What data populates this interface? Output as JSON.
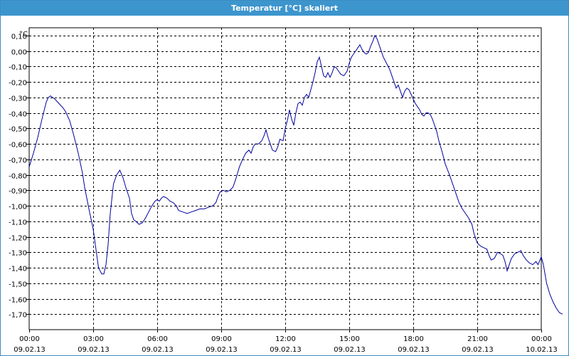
{
  "window": {
    "title": "Temperatur [°C] skaliert"
  },
  "colors": {
    "titlebar": "#3d95cd",
    "line": "#0000a0",
    "grid": "#000000"
  },
  "chart_data": {
    "type": "line",
    "title": "Temperatur [°C] skaliert",
    "ylabel": "°C",
    "xlabel": "",
    "ylim": [
      -1.8,
      0.15
    ],
    "grid": true,
    "y_ticks": [
      "0,10",
      "0,00",
      "-0,10",
      "-0,20",
      "-0,30",
      "-0,40",
      "-0,50",
      "-0,60",
      "-0,70",
      "-0,80",
      "-0,90",
      "-1,00",
      "-1,10",
      "-1,20",
      "-1,30",
      "-1,40",
      "-1,50",
      "-1,60",
      "-1,70"
    ],
    "y_tick_values": [
      0.1,
      0.0,
      -0.1,
      -0.2,
      -0.3,
      -0.4,
      -0.5,
      -0.6,
      -0.7,
      -0.8,
      -0.9,
      -1.0,
      -1.1,
      -1.2,
      -1.3,
      -1.4,
      -1.5,
      -1.6,
      -1.7
    ],
    "x_ticks": [
      {
        "time": "00:00",
        "date": "09.02.13",
        "hours": 0
      },
      {
        "time": "03:00",
        "date": "09.02.13",
        "hours": 3
      },
      {
        "time": "06:00",
        "date": "09.02.13",
        "hours": 6
      },
      {
        "time": "09:00",
        "date": "09.02.13",
        "hours": 9
      },
      {
        "time": "12:00",
        "date": "09.02.13",
        "hours": 12
      },
      {
        "time": "15:00",
        "date": "09.02.13",
        "hours": 15
      },
      {
        "time": "18:00",
        "date": "09.02.13",
        "hours": 18
      },
      {
        "time": "21:00",
        "date": "09.02.13",
        "hours": 21
      },
      {
        "time": "00:00",
        "date": "10.02.13",
        "hours": 24
      }
    ],
    "series": [
      {
        "points": [
          [
            0,
            -0.75
          ],
          [
            0.2,
            -0.66
          ],
          [
            0.4,
            -0.56
          ],
          [
            0.6,
            -0.44
          ],
          [
            0.8,
            -0.33
          ],
          [
            0.9,
            -0.3
          ],
          [
            1.0,
            -0.29
          ],
          [
            1.2,
            -0.31
          ],
          [
            1.4,
            -0.34
          ],
          [
            1.6,
            -0.37
          ],
          [
            1.7,
            -0.39
          ],
          [
            1.9,
            -0.45
          ],
          [
            2.1,
            -0.55
          ],
          [
            2.3,
            -0.66
          ],
          [
            2.5,
            -0.79
          ],
          [
            2.6,
            -0.88
          ],
          [
            2.8,
            -1.02
          ],
          [
            3.0,
            -1.15
          ],
          [
            3.15,
            -1.3
          ],
          [
            3.25,
            -1.4
          ],
          [
            3.4,
            -1.44
          ],
          [
            3.5,
            -1.44
          ],
          [
            3.6,
            -1.38
          ],
          [
            3.7,
            -1.25
          ],
          [
            3.8,
            -1.05
          ],
          [
            3.95,
            -0.86
          ],
          [
            4.1,
            -0.8
          ],
          [
            4.25,
            -0.77
          ],
          [
            4.4,
            -0.82
          ],
          [
            4.55,
            -0.89
          ],
          [
            4.7,
            -0.95
          ],
          [
            4.8,
            -1.05
          ],
          [
            4.9,
            -1.09
          ],
          [
            5.0,
            -1.1
          ],
          [
            5.15,
            -1.12
          ],
          [
            5.3,
            -1.11
          ],
          [
            5.45,
            -1.08
          ],
          [
            5.6,
            -1.04
          ],
          [
            5.75,
            -1.0
          ],
          [
            5.9,
            -0.97
          ],
          [
            6.0,
            -0.96
          ],
          [
            6.1,
            -0.97
          ],
          [
            6.2,
            -0.95
          ],
          [
            6.3,
            -0.94
          ],
          [
            6.45,
            -0.95
          ],
          [
            6.6,
            -0.97
          ],
          [
            6.75,
            -0.98
          ],
          [
            6.9,
            -1.0
          ],
          [
            7.0,
            -1.03
          ],
          [
            7.2,
            -1.04
          ],
          [
            7.4,
            -1.05
          ],
          [
            7.6,
            -1.04
          ],
          [
            7.8,
            -1.03
          ],
          [
            8.0,
            -1.02
          ],
          [
            8.2,
            -1.02
          ],
          [
            8.4,
            -1.01
          ],
          [
            8.6,
            -1.0
          ],
          [
            8.75,
            -0.98
          ],
          [
            8.85,
            -0.94
          ],
          [
            8.95,
            -0.91
          ],
          [
            9.1,
            -0.9
          ],
          [
            9.25,
            -0.91
          ],
          [
            9.4,
            -0.9
          ],
          [
            9.55,
            -0.88
          ],
          [
            9.7,
            -0.82
          ],
          [
            9.85,
            -0.75
          ],
          [
            10.0,
            -0.7
          ],
          [
            10.15,
            -0.66
          ],
          [
            10.3,
            -0.64
          ],
          [
            10.4,
            -0.66
          ],
          [
            10.5,
            -0.62
          ],
          [
            10.6,
            -0.6
          ],
          [
            10.75,
            -0.6
          ],
          [
            10.9,
            -0.58
          ],
          [
            11.0,
            -0.55
          ],
          [
            11.1,
            -0.51
          ],
          [
            11.2,
            -0.56
          ],
          [
            11.3,
            -0.6
          ],
          [
            11.4,
            -0.64
          ],
          [
            11.55,
            -0.65
          ],
          [
            11.65,
            -0.62
          ],
          [
            11.75,
            -0.57
          ],
          [
            11.9,
            -0.58
          ],
          [
            12.0,
            -0.5
          ],
          [
            12.1,
            -0.45
          ],
          [
            12.2,
            -0.38
          ],
          [
            12.3,
            -0.44
          ],
          [
            12.4,
            -0.48
          ],
          [
            12.5,
            -0.4
          ],
          [
            12.6,
            -0.34
          ],
          [
            12.7,
            -0.33
          ],
          [
            12.8,
            -0.35
          ],
          [
            12.9,
            -0.3
          ],
          [
            13.0,
            -0.28
          ],
          [
            13.1,
            -0.3
          ],
          [
            13.2,
            -0.25
          ],
          [
            13.3,
            -0.2
          ],
          [
            13.4,
            -0.14
          ],
          [
            13.5,
            -0.07
          ],
          [
            13.6,
            -0.04
          ],
          [
            13.7,
            -0.1
          ],
          [
            13.8,
            -0.16
          ],
          [
            13.9,
            -0.17
          ],
          [
            14.0,
            -0.14
          ],
          [
            14.1,
            -0.17
          ],
          [
            14.2,
            -0.14
          ],
          [
            14.3,
            -0.1
          ],
          [
            14.4,
            -0.11
          ],
          [
            14.5,
            -0.13
          ],
          [
            14.6,
            -0.15
          ],
          [
            14.75,
            -0.16
          ],
          [
            14.9,
            -0.13
          ],
          [
            15.0,
            -0.08
          ],
          [
            15.1,
            -0.04
          ],
          [
            15.2,
            -0.02
          ],
          [
            15.3,
            0.0
          ],
          [
            15.4,
            0.02
          ],
          [
            15.5,
            0.04
          ],
          [
            15.6,
            0.01
          ],
          [
            15.7,
            -0.01
          ],
          [
            15.8,
            -0.02
          ],
          [
            15.9,
            -0.01
          ],
          [
            16.0,
            0.03
          ],
          [
            16.1,
            0.06
          ],
          [
            16.2,
            0.1
          ],
          [
            16.3,
            0.08
          ],
          [
            16.4,
            0.04
          ],
          [
            16.5,
            0.0
          ],
          [
            16.6,
            -0.04
          ],
          [
            16.75,
            -0.08
          ],
          [
            16.9,
            -0.12
          ],
          [
            17.0,
            -0.16
          ],
          [
            17.1,
            -0.2
          ],
          [
            17.2,
            -0.24
          ],
          [
            17.3,
            -0.22
          ],
          [
            17.4,
            -0.26
          ],
          [
            17.5,
            -0.3
          ],
          [
            17.6,
            -0.26
          ],
          [
            17.7,
            -0.24
          ],
          [
            17.8,
            -0.25
          ],
          [
            17.9,
            -0.28
          ],
          [
            18.0,
            -0.31
          ],
          [
            18.1,
            -0.34
          ],
          [
            18.2,
            -0.36
          ],
          [
            18.3,
            -0.38
          ],
          [
            18.4,
            -0.41
          ],
          [
            18.5,
            -0.42
          ],
          [
            18.6,
            -0.4
          ],
          [
            18.7,
            -0.4
          ],
          [
            18.8,
            -0.41
          ],
          [
            18.9,
            -0.44
          ],
          [
            19.0,
            -0.48
          ],
          [
            19.1,
            -0.52
          ],
          [
            19.2,
            -0.58
          ],
          [
            19.35,
            -0.65
          ],
          [
            19.5,
            -0.73
          ],
          [
            19.7,
            -0.8
          ],
          [
            19.85,
            -0.86
          ],
          [
            20.0,
            -0.92
          ],
          [
            20.15,
            -0.98
          ],
          [
            20.3,
            -1.02
          ],
          [
            20.45,
            -1.05
          ],
          [
            20.6,
            -1.08
          ],
          [
            20.75,
            -1.12
          ],
          [
            20.85,
            -1.18
          ],
          [
            21.0,
            -1.24
          ],
          [
            21.15,
            -1.26
          ],
          [
            21.3,
            -1.27
          ],
          [
            21.45,
            -1.28
          ],
          [
            21.55,
            -1.32
          ],
          [
            21.65,
            -1.35
          ],
          [
            21.8,
            -1.34
          ],
          [
            21.95,
            -1.3
          ],
          [
            22.1,
            -1.31
          ],
          [
            22.2,
            -1.32
          ],
          [
            22.3,
            -1.36
          ],
          [
            22.4,
            -1.42
          ],
          [
            22.5,
            -1.38
          ],
          [
            22.6,
            -1.34
          ],
          [
            22.75,
            -1.31
          ],
          [
            22.9,
            -1.3
          ],
          [
            23.05,
            -1.29
          ],
          [
            23.15,
            -1.32
          ],
          [
            23.3,
            -1.35
          ],
          [
            23.45,
            -1.37
          ],
          [
            23.6,
            -1.38
          ],
          [
            23.75,
            -1.36
          ],
          [
            23.85,
            -1.38
          ],
          [
            24.0,
            -1.33
          ],
          [
            24.1,
            -1.38
          ],
          [
            24.25,
            -1.5
          ],
          [
            24.4,
            -1.57
          ],
          [
            24.55,
            -1.62
          ],
          [
            24.7,
            -1.66
          ],
          [
            24.85,
            -1.69
          ],
          [
            25.0,
            -1.7
          ]
        ]
      }
    ]
  }
}
